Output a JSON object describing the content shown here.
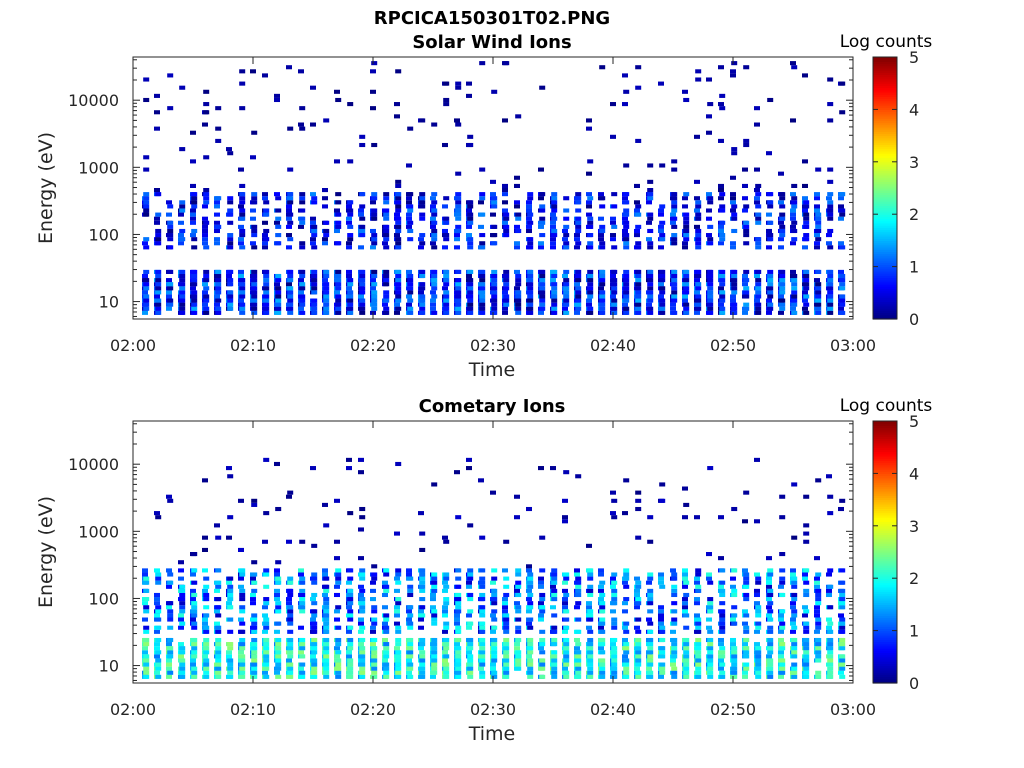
{
  "figure_title": "RPCICA150301T02.PNG",
  "colorbar": {
    "label": "Log counts",
    "range": [
      0,
      5
    ],
    "ticks": [
      "0",
      "1",
      "2",
      "3",
      "4",
      "5"
    ],
    "colormap": "jet"
  },
  "chart_data": [
    {
      "type": "heatmap",
      "title": "Solar Wind Ions",
      "xlabel": "Time",
      "ylabel": "Energy (eV)",
      "x_range": [
        "02:00",
        "03:00"
      ],
      "x_ticks": [
        "02:00",
        "02:10",
        "02:20",
        "02:30",
        "02:40",
        "02:50",
        "03:00"
      ],
      "y_scale": "log",
      "y_range_eV": [
        5.5,
        44000
      ],
      "y_ticks": [
        "10",
        "100",
        "1000",
        "10000"
      ],
      "description_of_values": "Sweep columns roughly every 1 minute; low-energy band (6-30 eV) counts ~0-1.5 log; mid-band (60-400 eV) ~0-1.3 log; sparse single-count (log 0) pixels up to ~40 keV",
      "bands": [
        {
          "energy_eV": [
            6,
            30
          ],
          "log_counts": [
            0,
            1.5
          ]
        },
        {
          "energy_eV": [
            60,
            400
          ],
          "log_counts": [
            0,
            1.3
          ]
        },
        {
          "energy_eV": [
            400,
            40000
          ],
          "log_counts": [
            0,
            0.3
          ]
        }
      ]
    },
    {
      "type": "heatmap",
      "title": "Cometary Ions",
      "xlabel": "Time",
      "ylabel": "Energy (eV)",
      "x_range": [
        "02:00",
        "03:00"
      ],
      "x_ticks": [
        "02:00",
        "02:10",
        "02:20",
        "02:30",
        "02:40",
        "02:50",
        "03:00"
      ],
      "y_scale": "log",
      "y_range_eV": [
        5.5,
        44000
      ],
      "y_ticks": [
        "10",
        "100",
        "1000",
        "10000"
      ],
      "description_of_values": "Sweep columns roughly every 1 minute; low-energy band (6-25 eV) counts ~1.5-2.5 log; mid-band (30-300 eV) ~0.5-2 log; sparse counts up to ~13 keV",
      "bands": [
        {
          "energy_eV": [
            6,
            25
          ],
          "log_counts": [
            1.2,
            2.6
          ]
        },
        {
          "energy_eV": [
            30,
            300
          ],
          "log_counts": [
            0.3,
            2.1
          ]
        },
        {
          "energy_eV": [
            300,
            13000
          ],
          "log_counts": [
            0,
            0.4
          ]
        }
      ]
    }
  ]
}
